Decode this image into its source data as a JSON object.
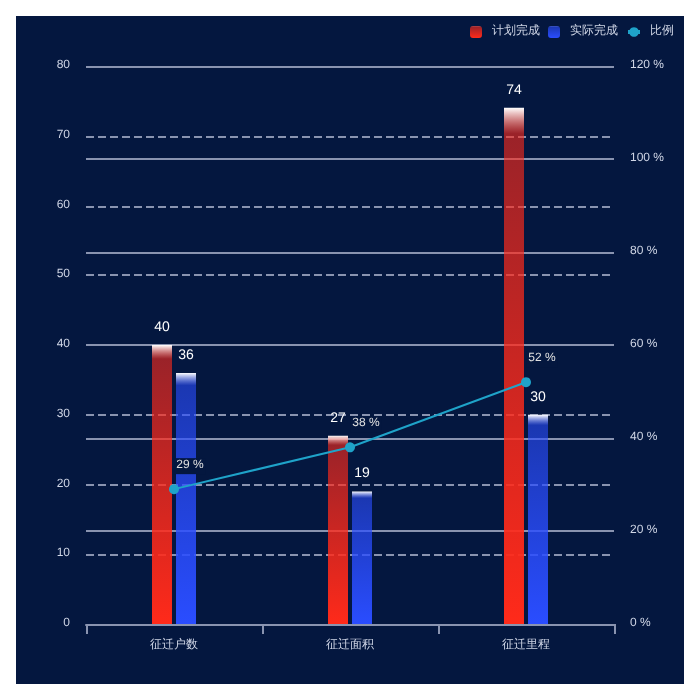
{
  "chart_data": {
    "type": "bar",
    "categories": [
      "征迁户数",
      "征迁面积",
      "征迁里程"
    ],
    "series": [
      {
        "name": "计划完成",
        "color": "#ff2a1a",
        "values": [
          40,
          27,
          74
        ],
        "value_labels": [
          "40",
          "27",
          "74"
        ]
      },
      {
        "name": "实际完成",
        "color": "#2a4dff",
        "values": [
          36,
          19,
          30
        ],
        "value_labels": [
          "36",
          "19",
          "30"
        ]
      },
      {
        "name": "比例",
        "type": "line",
        "axis": "y2",
        "color": "#1fa3c9",
        "values": [
          29,
          38,
          52
        ],
        "value_labels": [
          "29 %",
          "38 %",
          "52 %"
        ]
      }
    ],
    "ylim": [
      0,
      80
    ],
    "yticks": [
      0,
      10,
      20,
      30,
      40,
      50,
      60,
      70,
      80
    ],
    "y2lim": [
      0,
      120
    ],
    "y2ticks": [
      {
        "value": 0,
        "label": "0 %"
      },
      {
        "value": 20,
        "label": "20 %"
      },
      {
        "value": 40,
        "label": "40 %"
      },
      {
        "value": 60,
        "label": "60 %"
      },
      {
        "value": 80,
        "label": "80 %"
      },
      {
        "value": 100,
        "label": "100 %"
      },
      {
        "value": 120,
        "label": "120 %"
      }
    ],
    "grid": true,
    "legend": "top right",
    "marker": "circle"
  }
}
